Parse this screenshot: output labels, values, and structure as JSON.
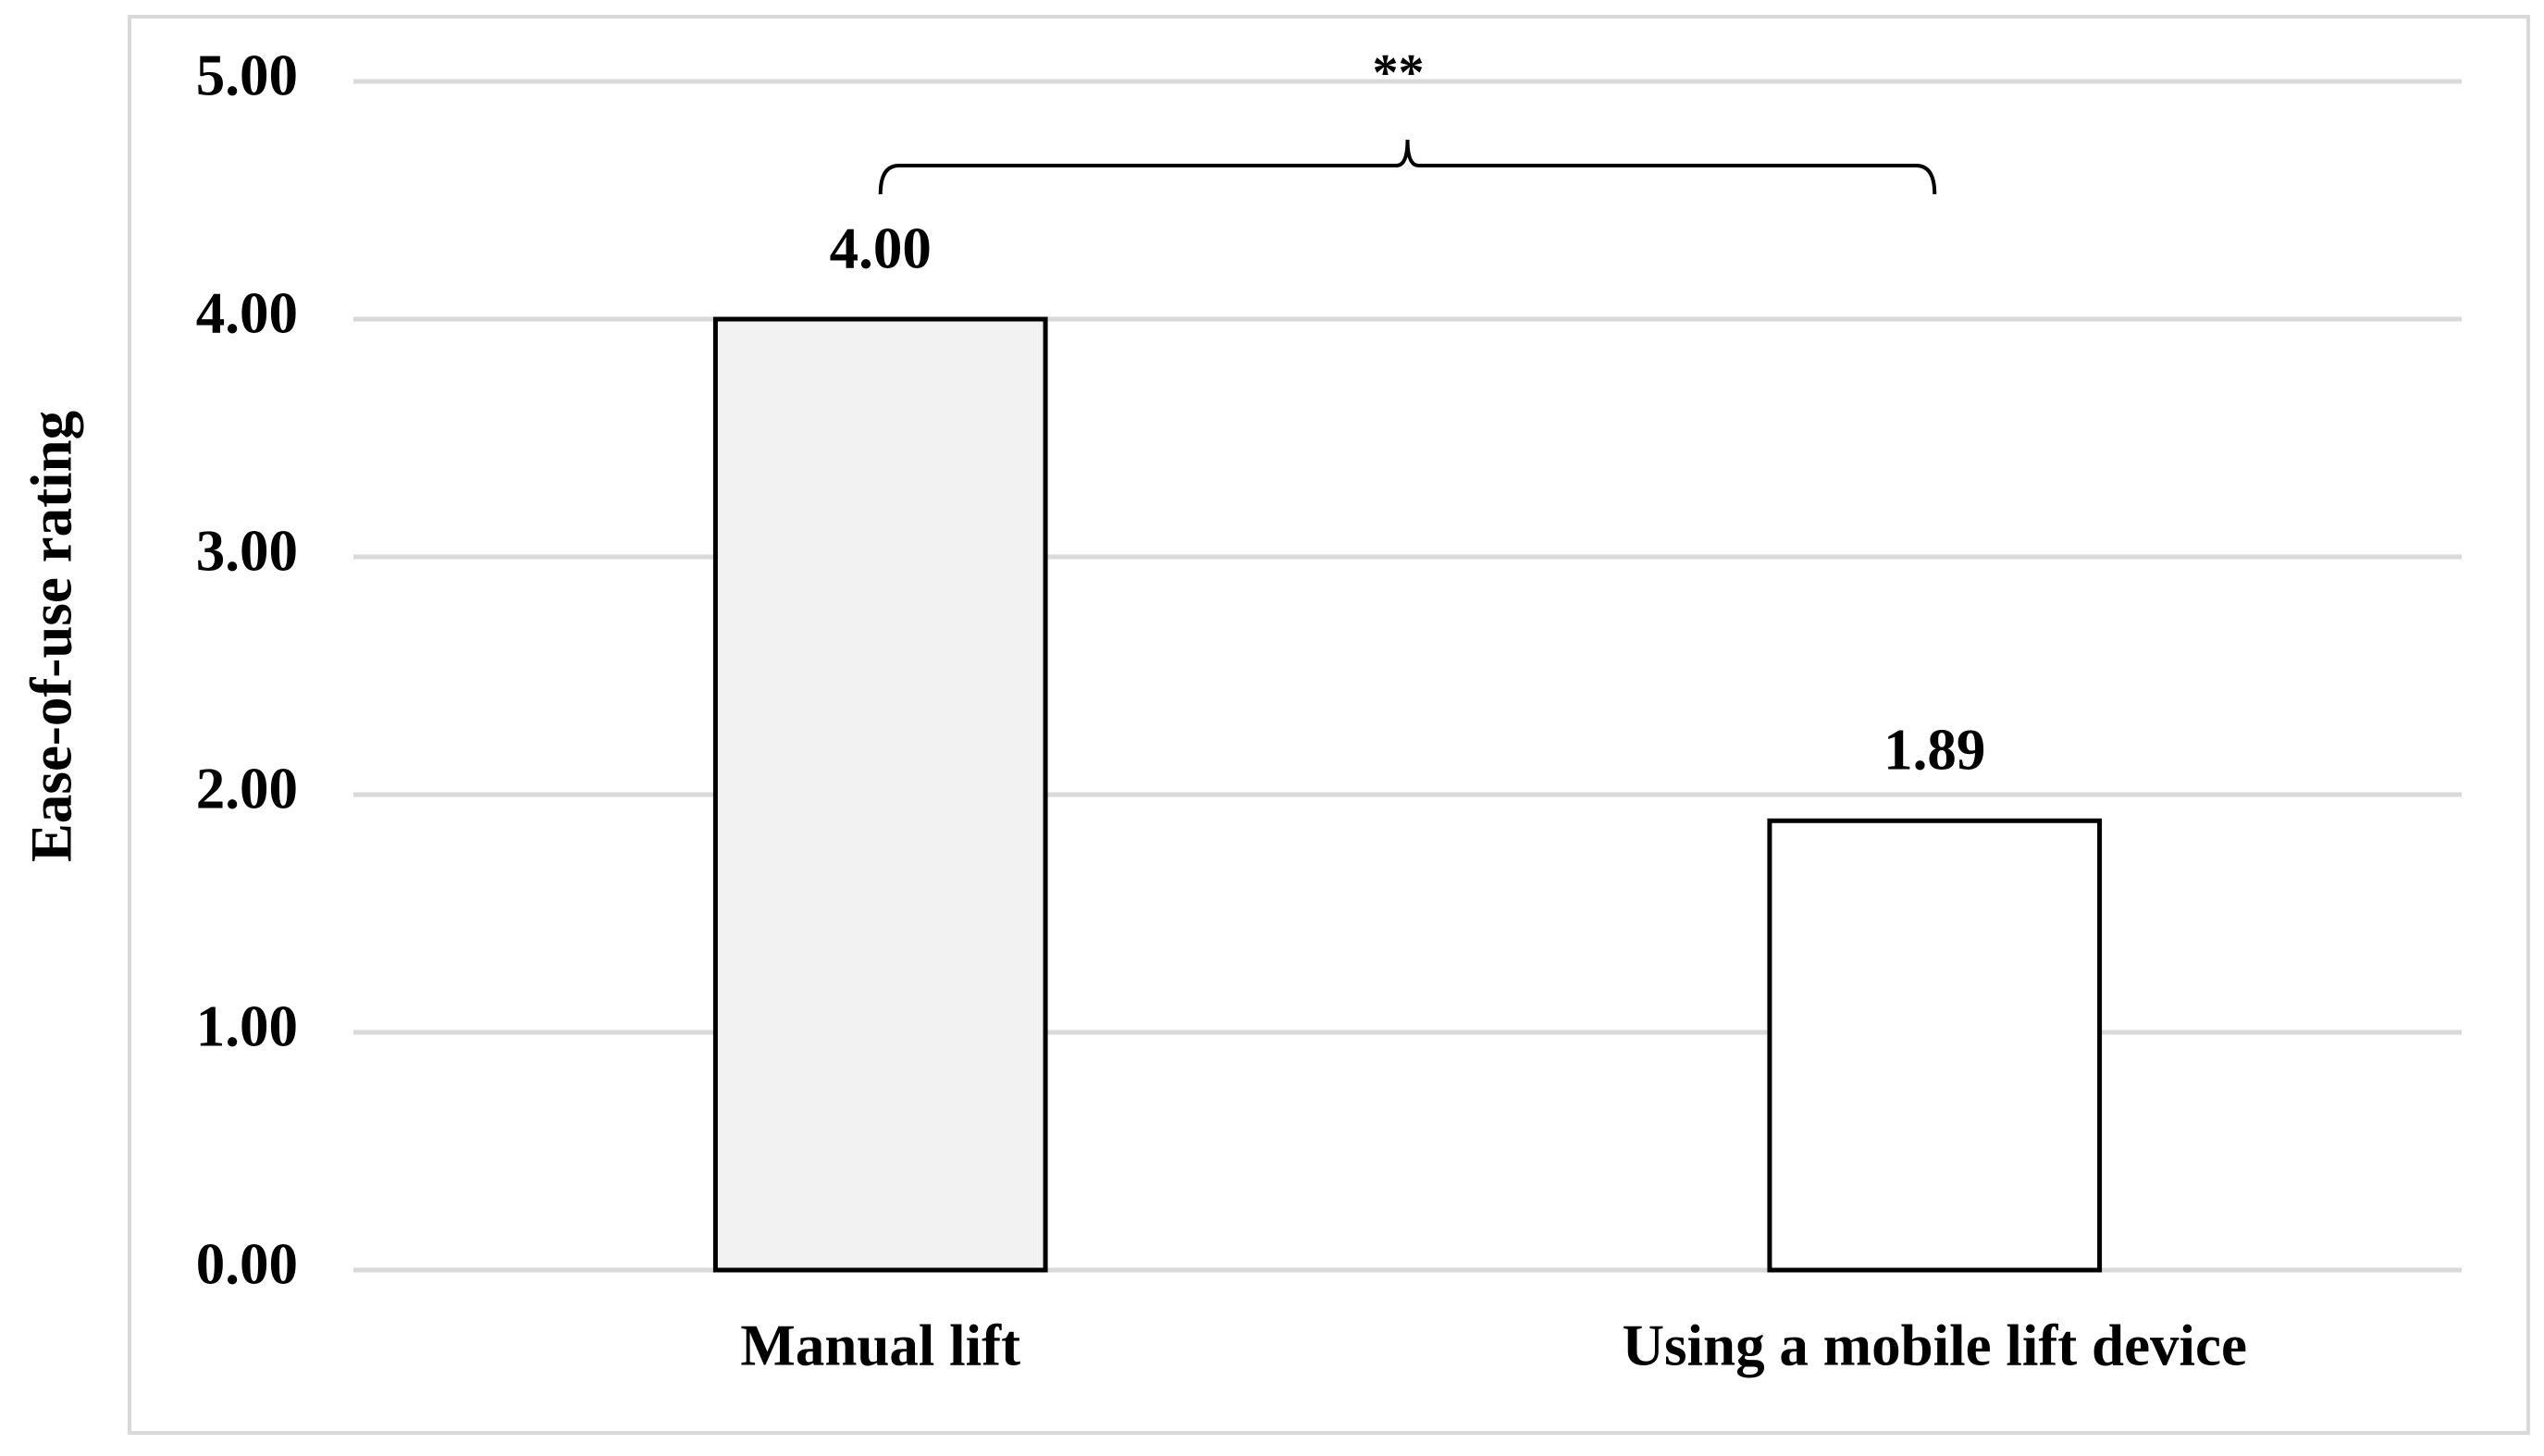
{
  "chart_data": {
    "type": "bar",
    "y_label": "Ease-of-use rating",
    "categories": [
      "Manual lift",
      "Using a mobile lift device"
    ],
    "values": [
      4,
      1.89
    ],
    "value_labels": [
      "4.00",
      "1.89"
    ],
    "colors": [
      "#f2f2f2",
      "#ffffff"
    ],
    "ylim": [
      0,
      5
    ],
    "yticks": [
      {
        "value": 0,
        "label": "0.00"
      },
      {
        "value": 1,
        "label": "1.00"
      },
      {
        "value": 2,
        "label": "2.00"
      },
      {
        "value": 3,
        "label": "3.00"
      },
      {
        "value": 4,
        "label": "4.00"
      },
      {
        "value": 5,
        "label": "5.00"
      }
    ],
    "grid": true,
    "annotation": "**"
  }
}
